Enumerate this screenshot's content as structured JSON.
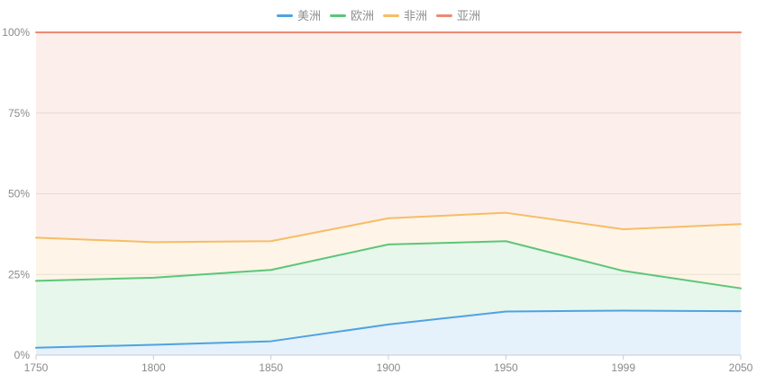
{
  "chart_data": {
    "type": "area",
    "stacked": "percent",
    "title": "",
    "xlabel": "",
    "ylabel": "",
    "ylim": [
      0,
      100
    ],
    "grid": true,
    "legend_position": "top",
    "categories": [
      "1750",
      "1800",
      "1850",
      "1900",
      "1950",
      "1999",
      "2050"
    ],
    "series": [
      {
        "name": "美洲",
        "color": "#4fa2e3",
        "values": [
          2.3,
          3.2,
          4.3,
          9.5,
          13.5,
          13.8,
          13.6
        ]
      },
      {
        "name": "欧洲",
        "color": "#5cc677",
        "values": [
          20.7,
          20.8,
          22.1,
          24.8,
          21.8,
          12.3,
          7.1
        ]
      },
      {
        "name": "非洲",
        "color": "#f6bd66",
        "values": [
          13.4,
          11.0,
          8.9,
          8.1,
          8.8,
          12.9,
          19.9
        ]
      },
      {
        "name": "亚洲",
        "color": "#ec8a72",
        "values": [
          63.6,
          65.0,
          64.7,
          57.6,
          55.9,
          61.0,
          59.4
        ]
      }
    ],
    "yticks": [
      {
        "label": "0%",
        "value": 0
      },
      {
        "label": "25%",
        "value": 25
      },
      {
        "label": "50%",
        "value": 50
      },
      {
        "label": "75%",
        "value": 75
      },
      {
        "label": "100%",
        "value": 100
      }
    ],
    "style": {
      "fill_opacity": 0.15,
      "gridline_color": "#e8e8e8",
      "axis_color": "#cccccc",
      "label_color": "#8a8a8a"
    }
  }
}
